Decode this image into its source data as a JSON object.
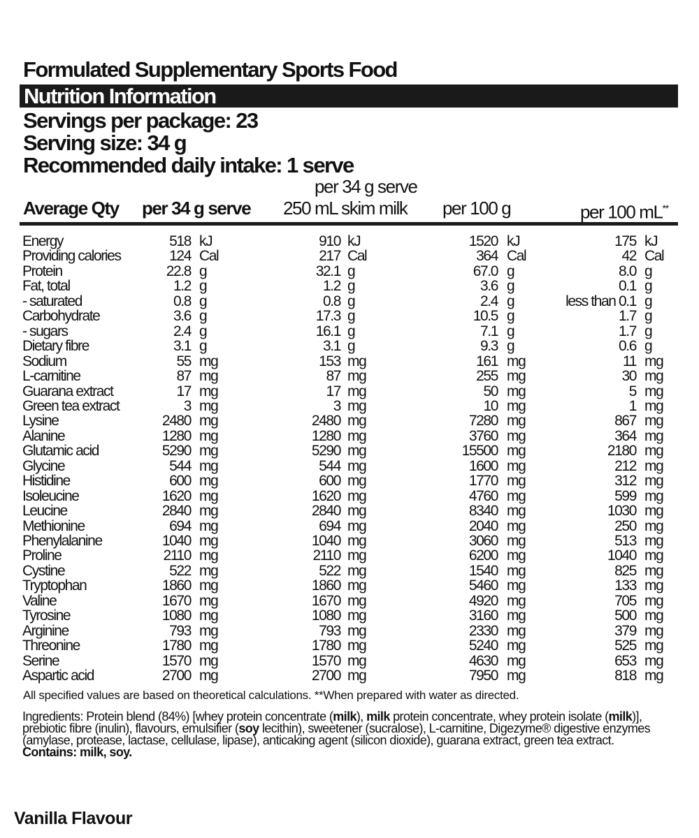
{
  "title": "Formulated Supplementary Sports Food",
  "section_header": "Nutrition Information",
  "servings_per_package": "Servings per package: 23",
  "serving_size": "Serving size: 34 g",
  "recommended_intake": "Recommended daily intake: 1 serve",
  "columns": {
    "name": "Average Qty",
    "col1": "per 34 g serve",
    "col2_top": "per 34 g serve",
    "col2": "250 mL skim milk",
    "col3": "per 100 g",
    "col4": "per 100 mL",
    "col4_mark": "**"
  },
  "rows": [
    [
      "Energy",
      "518",
      "kJ",
      "910",
      "kJ",
      "1520",
      "kJ",
      "175",
      "kJ"
    ],
    [
      "Providing calories",
      "124",
      "Cal",
      "217",
      "Cal",
      "364",
      "Cal",
      "42",
      "Cal"
    ],
    [
      "Protein",
      "22.8",
      "g",
      "32.1",
      "g",
      "67.0",
      "g",
      "8.0",
      "g"
    ],
    [
      "Fat, total",
      "1.2",
      "g",
      "1.2",
      "g",
      "3.6",
      "g",
      "0.1",
      "g"
    ],
    [
      "- saturated",
      "0.8",
      "g",
      "0.8",
      "g",
      "2.4",
      "g",
      "less than 0.1",
      "g"
    ],
    [
      "Carbohydrate",
      "3.6",
      "g",
      "17.3",
      "g",
      "10.5",
      "g",
      "1.7",
      "g"
    ],
    [
      "- sugars",
      "2.4",
      "g",
      "16.1",
      "g",
      "7.1",
      "g",
      "1.7",
      "g"
    ],
    [
      "Dietary fibre",
      "3.1",
      "g",
      "3.1",
      "g",
      "9.3",
      "g",
      "0.6",
      "g"
    ],
    [
      "Sodium",
      "55",
      "mg",
      "153",
      "mg",
      "161",
      "mg",
      "11",
      "mg"
    ],
    [
      "L-carnitine",
      "87",
      "mg",
      "87",
      "mg",
      "255",
      "mg",
      "30",
      "mg"
    ],
    [
      "Guarana extract",
      "17",
      "mg",
      "17",
      "mg",
      "50",
      "mg",
      "5",
      "mg"
    ],
    [
      "Green tea extract",
      "3",
      "mg",
      "3",
      "mg",
      "10",
      "mg",
      "1",
      "mg"
    ],
    [
      "Lysine",
      "2480",
      "mg",
      "2480",
      "mg",
      "7280",
      "mg",
      "867",
      "mg"
    ],
    [
      "Alanine",
      "1280",
      "mg",
      "1280",
      "mg",
      "3760",
      "mg",
      "364",
      "mg"
    ],
    [
      "Glutamic acid",
      "5290",
      "mg",
      "5290",
      "mg",
      "15500",
      "mg",
      "2180",
      "mg"
    ],
    [
      "Glycine",
      "544",
      "mg",
      "544",
      "mg",
      "1600",
      "mg",
      "212",
      "mg"
    ],
    [
      "Histidine",
      "600",
      "mg",
      "600",
      "mg",
      "1770",
      "mg",
      "312",
      "mg"
    ],
    [
      "Isoleucine",
      "1620",
      "mg",
      "1620",
      "mg",
      "4760",
      "mg",
      "599",
      "mg"
    ],
    [
      "Leucine",
      "2840",
      "mg",
      "2840",
      "mg",
      "8340",
      "mg",
      "1030",
      "mg"
    ],
    [
      "Methionine",
      "694",
      "mg",
      "694",
      "mg",
      "2040",
      "mg",
      "250",
      "mg"
    ],
    [
      "Phenylalanine",
      "1040",
      "mg",
      "1040",
      "mg",
      "3060",
      "mg",
      "513",
      "mg"
    ],
    [
      "Proline",
      "2110",
      "mg",
      "2110",
      "mg",
      "6200",
      "mg",
      "1040",
      "mg"
    ],
    [
      "Cystine",
      "522",
      "mg",
      "522",
      "mg",
      "1540",
      "mg",
      "825",
      "mg"
    ],
    [
      "Tryptophan",
      "1860",
      "mg",
      "1860",
      "mg",
      "5460",
      "mg",
      "133",
      "mg"
    ],
    [
      "Valine",
      "1670",
      "mg",
      "1670",
      "mg",
      "4920",
      "mg",
      "705",
      "mg"
    ],
    [
      "Tyrosine",
      "1080",
      "mg",
      "1080",
      "mg",
      "3160",
      "mg",
      "500",
      "mg"
    ],
    [
      "Arginine",
      "793",
      "mg",
      "793",
      "mg",
      "2330",
      "mg",
      "379",
      "mg"
    ],
    [
      "Threonine",
      "1780",
      "mg",
      "1780",
      "mg",
      "5240",
      "mg",
      "525",
      "mg"
    ],
    [
      "Serine",
      "1570",
      "mg",
      "1570",
      "mg",
      "4630",
      "mg",
      "653",
      "mg"
    ],
    [
      "Aspartic acid",
      "2700",
      "mg",
      "2700",
      "mg",
      "7950",
      "mg",
      "818",
      "mg"
    ]
  ],
  "footnote": "All specified values are based on theoretical calculations.  **When prepared with water as directed.",
  "ingredients": [
    {
      "t": "Ingredients: Protein blend (84%) [whey protein concentrate (",
      "b": false
    },
    {
      "t": "milk",
      "b": true
    },
    {
      "t": "), ",
      "b": false
    },
    {
      "t": "milk",
      "b": true
    },
    {
      "t": " protein concentrate, whey protein isolate (",
      "b": false
    },
    {
      "t": "milk",
      "b": true
    },
    {
      "t": ")], prebiotic fibre (inulin), flavours, emulsifier (",
      "b": false
    },
    {
      "t": "soy",
      "b": true
    },
    {
      "t": " lecithin), sweetener (sucralose), L-carnitine, Digezyme® digestive enzymes (amylase, protease, lactase, cellulase, lipase), anticaking agent (silicon dioxide), guarana extract, green tea extract.",
      "b": false
    }
  ],
  "contains": "Contains: milk, soy.",
  "flavour": "Vanilla Flavour"
}
